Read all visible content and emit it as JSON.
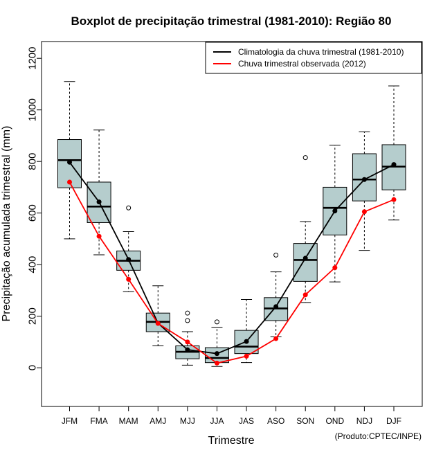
{
  "chart_data": {
    "type": "box",
    "title": "Boxplot de precipitação trimestral (1981-2010): Região 80",
    "xlabel": "Trimestre",
    "ylabel": "Precipitação acumulada trimestral (mm)",
    "credit": "(Produto:CPTEC/INPE)",
    "ylim": [
      -150,
      1265
    ],
    "yticks": [
      "0",
      "200",
      "400",
      "600",
      "800",
      "1000",
      "1200"
    ],
    "categories": [
      "JFM",
      "FMA",
      "MAM",
      "AMJ",
      "MJJ",
      "JJA",
      "JAS",
      "ASO",
      "SON",
      "OND",
      "NDJ",
      "DJF"
    ],
    "boxes": [
      {
        "min": 500,
        "q1": 698,
        "median": 805,
        "q3": 885,
        "max": 1110,
        "outliers": []
      },
      {
        "min": 438,
        "q1": 563,
        "median": 625,
        "q3": 720,
        "max": 922,
        "outliers": []
      },
      {
        "min": 295,
        "q1": 378,
        "median": 415,
        "q3": 453,
        "max": 528,
        "outliers": [
          620
        ]
      },
      {
        "min": 85,
        "q1": 140,
        "median": 178,
        "q3": 212,
        "max": 318,
        "outliers": []
      },
      {
        "min": 10,
        "q1": 35,
        "median": 62,
        "q3": 85,
        "max": 140,
        "outliers": [
          183,
          212
        ]
      },
      {
        "min": 5,
        "q1": 20,
        "median": 38,
        "q3": 78,
        "max": 157,
        "outliers": [
          178
        ]
      },
      {
        "min": 20,
        "q1": 55,
        "median": 82,
        "q3": 145,
        "max": 265,
        "outliers": []
      },
      {
        "min": 120,
        "q1": 183,
        "median": 230,
        "q3": 272,
        "max": 372,
        "outliers": [
          437
        ]
      },
      {
        "min": 253,
        "q1": 335,
        "median": 418,
        "q3": 482,
        "max": 567,
        "outliers": [
          815
        ]
      },
      {
        "min": 333,
        "q1": 515,
        "median": 620,
        "q3": 700,
        "max": 863,
        "outliers": []
      },
      {
        "min": 455,
        "q1": 647,
        "median": 730,
        "q3": 830,
        "max": 915,
        "outliers": []
      },
      {
        "min": 573,
        "q1": 690,
        "median": 780,
        "q3": 865,
        "max": 1093,
        "outliers": []
      }
    ],
    "series": [
      {
        "name": "Climatologia da chuva trimestral (1981-2010)",
        "color": "#000000",
        "values": [
          797,
          643,
          420,
          173,
          70,
          55,
          102,
          237,
          425,
          608,
          730,
          788
        ]
      },
      {
        "name": "Chuva trimestral observada (2012)",
        "color": "#ff0000",
        "values": [
          720,
          510,
          343,
          172,
          100,
          18,
          45,
          113,
          283,
          388,
          605,
          652
        ]
      }
    ],
    "box_fill": "#b5cdcd",
    "legend_position": "top-right"
  }
}
